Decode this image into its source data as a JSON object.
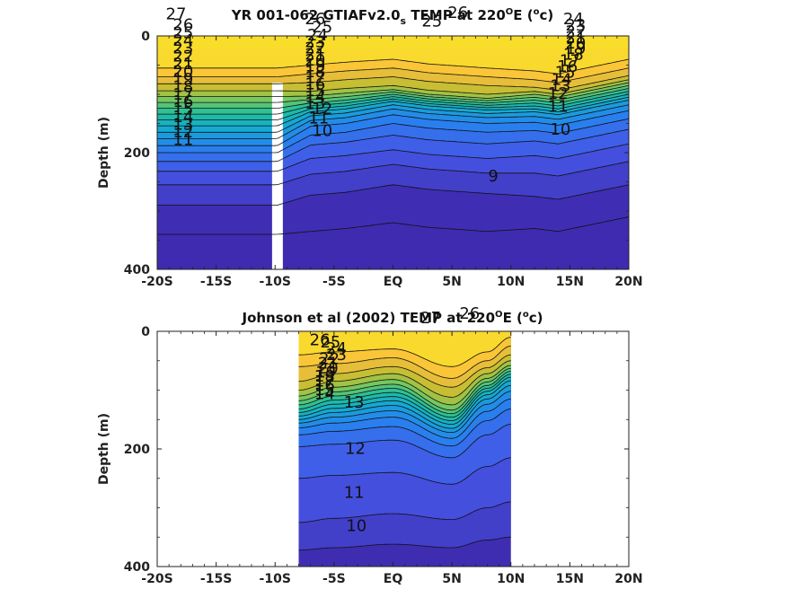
{
  "chart_data": [
    {
      "type": "heatmap",
      "subtype": "filled-contour",
      "title": "YR 001-062 GTIAFv2.0",
      "title_subscript": "s",
      "title_suffix": " TEMP at 220",
      "title_sup_o": "O",
      "title_unit_mid": "E (",
      "title_sup_c": "o",
      "title_unit_end": "c)",
      "xlabel": "",
      "ylabel": "Depth (m)",
      "x_ticks": [
        "-20S",
        "-15S",
        "-10S",
        "-5S",
        "EQ",
        "5N",
        "10N",
        "15N",
        "20N"
      ],
      "x_tick_values": [
        -20,
        -15,
        -10,
        -5,
        0,
        5,
        10,
        15,
        20
      ],
      "y_ticks": [
        "0",
        "200",
        "400"
      ],
      "y_tick_values": [
        0,
        200,
        400
      ],
      "xlim": [
        -20,
        20
      ],
      "ylim": [
        0,
        400
      ],
      "y_reversed": true,
      "gap_latitude": -9.8,
      "isotherms": [
        {
          "t": 27,
          "south": 55,
          "mid": 45,
          "eq": 40,
          "north": 60
        },
        {
          "t": 26,
          "south": 70,
          "mid": 60,
          "eq": 55,
          "north": 75
        },
        {
          "t": 25,
          "south": 82,
          "mid": 75,
          "eq": 70,
          "north": 88
        },
        {
          "t": 24,
          "south": 94,
          "mid": 90,
          "eq": 85,
          "north": 95
        },
        {
          "t": 23,
          "south": 104,
          "mid": 98,
          "eq": 92,
          "north": 100
        },
        {
          "t": 22,
          "south": 114,
          "mid": 104,
          "eq": 96,
          "north": 105
        },
        {
          "t": 21,
          "south": 124,
          "mid": 110,
          "eq": 100,
          "north": 110
        },
        {
          "t": 20,
          "south": 134,
          "mid": 115,
          "eq": 104,
          "north": 115
        },
        {
          "t": 19,
          "south": 144,
          "mid": 120,
          "eq": 108,
          "north": 120
        },
        {
          "t": 18,
          "south": 154,
          "mid": 125,
          "eq": 112,
          "north": 125
        },
        {
          "t": 17,
          "south": 165,
          "mid": 132,
          "eq": 118,
          "north": 130
        },
        {
          "t": 16,
          "south": 176,
          "mid": 140,
          "eq": 125,
          "north": 138
        },
        {
          "t": 15,
          "south": 188,
          "mid": 150,
          "eq": 135,
          "north": 148
        },
        {
          "t": 14,
          "south": 200,
          "mid": 165,
          "eq": 150,
          "north": 162
        },
        {
          "t": 13,
          "south": 215,
          "mid": 182,
          "eq": 170,
          "north": 180
        },
        {
          "t": 12,
          "south": 232,
          "mid": 205,
          "eq": 195,
          "north": 205
        },
        {
          "t": 11,
          "south": 255,
          "mid": 232,
          "eq": 220,
          "north": 235
        },
        {
          "t": 10,
          "south": 290,
          "mid": 268,
          "eq": 255,
          "north": 275
        },
        {
          "t": 9,
          "south": 340,
          "mid": 330,
          "eq": 320,
          "north": 330
        }
      ],
      "contour_labels": [
        "27",
        "26",
        "25",
        "24",
        "23",
        "22",
        "21",
        "20",
        "19",
        "18",
        "17",
        "16",
        "15",
        "14",
        "13",
        "12",
        "11",
        "26",
        "25",
        "24",
        "23",
        "22",
        "21",
        "20",
        "19",
        "18",
        "17",
        "16",
        "15",
        "14",
        "13",
        "12",
        "11",
        "10",
        "25",
        "26",
        "24",
        "23",
        "22",
        "21",
        "20",
        "19",
        "18",
        "17",
        "16",
        "15",
        "14",
        "13",
        "12",
        "11",
        "10",
        "9"
      ]
    },
    {
      "type": "heatmap",
      "subtype": "filled-contour",
      "title": "Johnson et al (2002) TEMP at 220",
      "title_sup_o": "O",
      "title_unit_mid": "E (",
      "title_sup_c": "o",
      "title_unit_end": "c)",
      "xlabel": "",
      "ylabel": "Depth (m)",
      "x_ticks": [
        "-20S",
        "-15S",
        "-10S",
        "-5S",
        "EQ",
        "5N",
        "10N",
        "15N",
        "20N"
      ],
      "x_tick_values": [
        -20,
        -15,
        -10,
        -5,
        0,
        5,
        10,
        15,
        20
      ],
      "y_ticks": [
        "0",
        "200",
        "400"
      ],
      "y_tick_values": [
        0,
        200,
        400
      ],
      "xlim": [
        -20,
        20
      ],
      "ylim": [
        0,
        400
      ],
      "y_reversed": true,
      "data_xrange": [
        -8,
        10
      ],
      "isotherms": [
        {
          "t": 27,
          "s8": 40,
          "s5": 35,
          "eq": 30,
          "n5": 60,
          "n8": 35,
          "n10": 10
        },
        {
          "t": 26,
          "s8": 60,
          "s5": 55,
          "eq": 45,
          "n5": 80,
          "n8": 50,
          "n10": 25
        },
        {
          "t": 25,
          "s8": 85,
          "s5": 72,
          "eq": 60,
          "n5": 95,
          "n8": 62,
          "n10": 40
        },
        {
          "t": 24,
          "s8": 100,
          "s5": 85,
          "eq": 72,
          "n5": 112,
          "n8": 72,
          "n10": 50
        },
        {
          "t": 23,
          "s8": 110,
          "s5": 95,
          "eq": 82,
          "n5": 125,
          "n8": 80,
          "n10": 58
        },
        {
          "t": 22,
          "s8": 118,
          "s5": 103,
          "eq": 90,
          "n5": 134,
          "n8": 86,
          "n10": 63
        },
        {
          "t": 21,
          "s8": 125,
          "s5": 110,
          "eq": 97,
          "n5": 140,
          "n8": 92,
          "n10": 68
        },
        {
          "t": 20,
          "s8": 132,
          "s5": 117,
          "eq": 104,
          "n5": 146,
          "n8": 97,
          "n10": 73
        },
        {
          "t": 19,
          "s8": 138,
          "s5": 124,
          "eq": 111,
          "n5": 152,
          "n8": 102,
          "n10": 78
        },
        {
          "t": 18,
          "s8": 144,
          "s5": 131,
          "eq": 118,
          "n5": 158,
          "n8": 108,
          "n10": 84
        },
        {
          "t": 17,
          "s8": 150,
          "s5": 138,
          "eq": 126,
          "n5": 165,
          "n8": 115,
          "n10": 92
        },
        {
          "t": 16,
          "s8": 156,
          "s5": 146,
          "eq": 135,
          "n5": 172,
          "n8": 124,
          "n10": 102
        },
        {
          "t": 15,
          "s8": 164,
          "s5": 156,
          "eq": 146,
          "n5": 182,
          "n8": 136,
          "n10": 115
        },
        {
          "t": 14,
          "s8": 176,
          "s5": 170,
          "eq": 162,
          "n5": 195,
          "n8": 152,
          "n10": 132
        },
        {
          "t": 13,
          "s8": 196,
          "s5": 192,
          "eq": 185,
          "n5": 215,
          "n8": 176,
          "n10": 158
        },
        {
          "t": 12,
          "s8": 250,
          "s5": 245,
          "eq": 240,
          "n5": 260,
          "n8": 230,
          "n10": 215
        },
        {
          "t": 11,
          "s8": 325,
          "s5": 318,
          "eq": 310,
          "n5": 320,
          "n8": 300,
          "n10": 290
        },
        {
          "t": 10,
          "s8": 372,
          "s5": 368,
          "eq": 362,
          "n5": 368,
          "n8": 355,
          "n10": 350
        }
      ],
      "contour_labels": [
        "26",
        "25",
        "24",
        "23",
        "22",
        "21",
        "20",
        "19",
        "18",
        "17",
        "16",
        "15",
        "14",
        "13",
        "27",
        "26",
        "12",
        "11",
        "10"
      ]
    }
  ]
}
